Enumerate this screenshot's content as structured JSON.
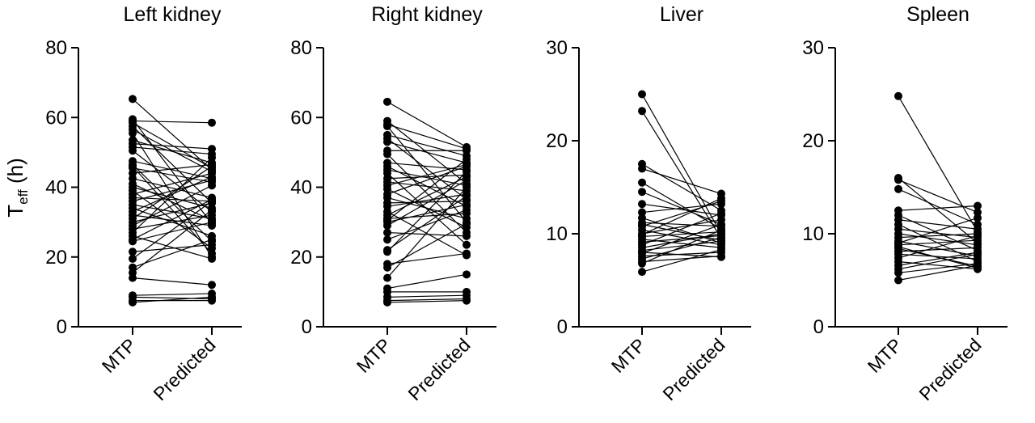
{
  "ylabel": {
    "main": "T",
    "sub": "eff",
    "unit": " (h)"
  },
  "chart_data": [
    {
      "type": "scatter",
      "title": "Left kidney",
      "categories": [
        "MTP",
        "Predicted"
      ],
      "ylim": [
        0,
        80
      ],
      "yticks": [
        0,
        20,
        40,
        60,
        80
      ],
      "series": [
        {
          "values": [
            65.3,
            45.0
          ]
        },
        {
          "values": [
            59.5,
            29.5
          ]
        },
        {
          "values": [
            58.5,
            45.5
          ]
        },
        {
          "values": [
            57.5,
            35.5
          ]
        },
        {
          "values": [
            56.5,
            44.5
          ]
        },
        {
          "values": [
            55.5,
            20.0
          ]
        },
        {
          "values": [
            53.5,
            47.0
          ]
        },
        {
          "values": [
            52.5,
            51.0
          ]
        },
        {
          "values": [
            51.5,
            49.5
          ]
        },
        {
          "values": [
            50.5,
            33.0
          ]
        },
        {
          "values": [
            47.5,
            42.5
          ]
        },
        {
          "values": [
            46.5,
            24.5
          ]
        },
        {
          "values": [
            45.5,
            41.5
          ]
        },
        {
          "values": [
            44.0,
            46.5
          ]
        },
        {
          "values": [
            42.5,
            37.0
          ]
        },
        {
          "values": [
            41.0,
            30.5
          ]
        },
        {
          "values": [
            40.0,
            34.0
          ]
        },
        {
          "values": [
            39.0,
            22.5
          ]
        },
        {
          "values": [
            38.0,
            44.0
          ]
        },
        {
          "values": [
            37.0,
            36.0
          ]
        },
        {
          "values": [
            36.0,
            42.0
          ]
        },
        {
          "values": [
            35.0,
            31.0
          ]
        },
        {
          "values": [
            34.0,
            26.0
          ]
        },
        {
          "values": [
            33.0,
            43.0
          ]
        },
        {
          "values": [
            32.0,
            29.0
          ]
        },
        {
          "values": [
            31.0,
            46.0
          ]
        },
        {
          "values": [
            30.0,
            35.5
          ]
        },
        {
          "values": [
            29.0,
            40.5
          ]
        },
        {
          "values": [
            28.0,
            32.0
          ]
        },
        {
          "values": [
            27.0,
            48.5
          ]
        },
        {
          "values": [
            26.0,
            19.5
          ]
        },
        {
          "values": [
            25.0,
            36.5
          ]
        },
        {
          "values": [
            24.5,
            30.0
          ]
        },
        {
          "values": [
            21.5,
            23.5
          ]
        },
        {
          "values": [
            19.5,
            36.0
          ]
        },
        {
          "values": [
            17.0,
            25.0
          ]
        },
        {
          "values": [
            15.5,
            33.5
          ]
        },
        {
          "values": [
            14.0,
            12.0
          ]
        },
        {
          "values": [
            9.0,
            9.5
          ]
        },
        {
          "values": [
            8.5,
            8.0
          ]
        },
        {
          "values": [
            7.5,
            7.5
          ]
        },
        {
          "values": [
            7.0,
            8.5
          ]
        },
        {
          "values": [
            59.0,
            58.5
          ]
        },
        {
          "values": [
            46.0,
            21.0
          ]
        }
      ]
    },
    {
      "type": "scatter",
      "title": "Right kidney",
      "categories": [
        "MTP",
        "Predicted"
      ],
      "ylim": [
        0,
        80
      ],
      "yticks": [
        0,
        20,
        40,
        60,
        80
      ],
      "series": [
        {
          "values": [
            64.5,
            51.5
          ]
        },
        {
          "values": [
            59.0,
            41.0
          ]
        },
        {
          "values": [
            57.5,
            30.0
          ]
        },
        {
          "values": [
            55.0,
            49.0
          ]
        },
        {
          "values": [
            54.0,
            36.5
          ]
        },
        {
          "values": [
            53.0,
            47.0
          ]
        },
        {
          "values": [
            50.5,
            50.5
          ]
        },
        {
          "values": [
            49.5,
            27.0
          ]
        },
        {
          "values": [
            47.0,
            45.0
          ]
        },
        {
          "values": [
            46.0,
            34.5
          ]
        },
        {
          "values": [
            45.0,
            40.5
          ]
        },
        {
          "values": [
            44.0,
            23.5
          ]
        },
        {
          "values": [
            42.5,
            43.5
          ]
        },
        {
          "values": [
            41.5,
            39.0
          ]
        },
        {
          "values": [
            39.5,
            28.5
          ]
        },
        {
          "values": [
            38.0,
            46.0
          ]
        },
        {
          "values": [
            37.0,
            31.0
          ]
        },
        {
          "values": [
            35.5,
            36.0
          ]
        },
        {
          "values": [
            34.5,
            38.0
          ]
        },
        {
          "values": [
            33.0,
            20.5
          ]
        },
        {
          "values": [
            32.0,
            43.0
          ]
        },
        {
          "values": [
            31.0,
            32.5
          ]
        },
        {
          "values": [
            30.5,
            48.0
          ]
        },
        {
          "values": [
            30.0,
            35.0
          ]
        },
        {
          "values": [
            29.0,
            42.0
          ]
        },
        {
          "values": [
            27.0,
            26.0
          ]
        },
        {
          "values": [
            25.0,
            33.5
          ]
        },
        {
          "values": [
            22.0,
            37.5
          ]
        },
        {
          "values": [
            21.5,
            44.5
          ]
        },
        {
          "values": [
            18.0,
            21.0
          ]
        },
        {
          "values": [
            17.0,
            29.5
          ]
        },
        {
          "values": [
            14.0,
            40.0
          ]
        },
        {
          "values": [
            11.0,
            15.0
          ]
        },
        {
          "values": [
            10.0,
            10.0
          ]
        },
        {
          "values": [
            8.5,
            9.0
          ]
        },
        {
          "values": [
            7.5,
            8.0
          ]
        },
        {
          "values": [
            7.0,
            7.5
          ]
        },
        {
          "values": [
            58.0,
            51.0
          ]
        },
        {
          "values": [
            40.5,
            46.5
          ]
        }
      ]
    },
    {
      "type": "scatter",
      "title": "Liver",
      "categories": [
        "MTP",
        "Predicted"
      ],
      "ylim": [
        0,
        30
      ],
      "yticks": [
        0,
        10,
        20,
        30
      ],
      "series": [
        {
          "values": [
            25.0,
            10.0
          ]
        },
        {
          "values": [
            23.2,
            9.5
          ]
        },
        {
          "values": [
            17.5,
            12.5
          ]
        },
        {
          "values": [
            17.0,
            14.3
          ]
        },
        {
          "values": [
            15.5,
            10.5
          ]
        },
        {
          "values": [
            14.5,
            11.0
          ]
        },
        {
          "values": [
            13.2,
            12.0
          ]
        },
        {
          "values": [
            12.3,
            13.2
          ]
        },
        {
          "values": [
            11.7,
            9.0
          ]
        },
        {
          "values": [
            11.2,
            10.8
          ]
        },
        {
          "values": [
            10.8,
            13.5
          ]
        },
        {
          "values": [
            10.4,
            8.8
          ]
        },
        {
          "values": [
            10.0,
            11.5
          ]
        },
        {
          "values": [
            9.7,
            10.2
          ]
        },
        {
          "values": [
            9.4,
            8.5
          ]
        },
        {
          "values": [
            9.1,
            9.8
          ]
        },
        {
          "values": [
            8.8,
            12.2
          ]
        },
        {
          "values": [
            8.5,
            10.0
          ]
        },
        {
          "values": [
            8.2,
            9.2
          ]
        },
        {
          "values": [
            7.9,
            11.0
          ]
        },
        {
          "values": [
            7.6,
            8.0
          ]
        },
        {
          "values": [
            7.3,
            9.6
          ]
        },
        {
          "values": [
            7.0,
            7.6
          ]
        },
        {
          "values": [
            6.8,
            10.4
          ]
        },
        {
          "values": [
            5.9,
            8.3
          ]
        },
        {
          "values": [
            9.9,
            13.8
          ]
        },
        {
          "values": [
            11.0,
            9.3
          ]
        },
        {
          "values": [
            8.0,
            7.5
          ]
        }
      ]
    },
    {
      "type": "scatter",
      "title": "Spleen",
      "categories": [
        "MTP",
        "Predicted"
      ],
      "ylim": [
        0,
        30
      ],
      "yticks": [
        0,
        10,
        20,
        30
      ],
      "series": [
        {
          "values": [
            24.8,
            10.2
          ]
        },
        {
          "values": [
            16.0,
            9.0
          ]
        },
        {
          "values": [
            15.8,
            12.3
          ]
        },
        {
          "values": [
            14.8,
            11.0
          ]
        },
        {
          "values": [
            12.5,
            13.0
          ]
        },
        {
          "values": [
            12.0,
            8.2
          ]
        },
        {
          "values": [
            11.5,
            10.5
          ]
        },
        {
          "values": [
            11.0,
            7.0
          ]
        },
        {
          "values": [
            10.5,
            9.6
          ]
        },
        {
          "values": [
            10.0,
            8.8
          ]
        },
        {
          "values": [
            9.6,
            10.0
          ]
        },
        {
          "values": [
            9.2,
            7.6
          ]
        },
        {
          "values": [
            8.8,
            9.3
          ]
        },
        {
          "values": [
            8.4,
            6.5
          ]
        },
        {
          "values": [
            8.1,
            8.5
          ]
        },
        {
          "values": [
            7.8,
            7.3
          ]
        },
        {
          "values": [
            7.4,
            9.8
          ]
        },
        {
          "values": [
            7.0,
            6.2
          ]
        },
        {
          "values": [
            6.6,
            8.0
          ]
        },
        {
          "values": [
            6.2,
            7.8
          ]
        },
        {
          "values": [
            5.8,
            6.8
          ]
        },
        {
          "values": [
            5.0,
            6.6
          ]
        },
        {
          "values": [
            9.0,
            11.7
          ]
        },
        {
          "values": [
            8.6,
            6.3
          ]
        }
      ]
    }
  ]
}
